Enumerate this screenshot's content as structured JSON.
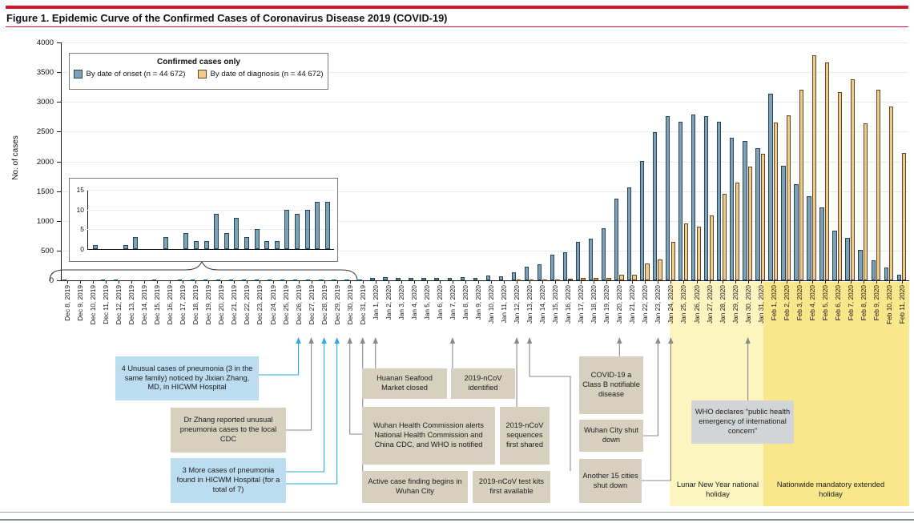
{
  "figure": {
    "label": "Figure 1.",
    "title": "Epidemic Curve of the Confirmed Cases of Coronavirus Disease 2019 (COVID-19)"
  },
  "y_axis": {
    "label": "No. of cases",
    "ticks": [
      0,
      500,
      1000,
      1500,
      2000,
      2500,
      3000,
      3500,
      4000
    ]
  },
  "legend": {
    "title": "Confirmed cases only",
    "items": [
      {
        "label": "By date of onset (n = 44 672)",
        "color": "#7EA1B5"
      },
      {
        "label": "By date of diagnosis (n = 44 672)",
        "color": "#F3C889"
      }
    ]
  },
  "chart_data": {
    "type": "bar",
    "title": "Epidemic Curve of the Confirmed Cases of Coronavirus Disease 2019 (COVID-19)",
    "xlabel": "Date",
    "ylabel": "No. of cases",
    "ylim": [
      0,
      4000
    ],
    "grid": true,
    "legend_position": "upper left",
    "dates": [
      "Dec 8, 2019",
      "Dec 9, 2019",
      "Dec 10, 2019",
      "Dec 11, 2019",
      "Dec 12, 2019",
      "Dec 13, 2019",
      "Dec 14, 2019",
      "Dec 15, 2019",
      "Dec 16, 2019",
      "Dec 17, 2019",
      "Dec 18, 2019",
      "Dec 19, 2019",
      "Dec 20, 2019",
      "Dec 21, 2019",
      "Dec 22, 2019",
      "Dec 23, 2019",
      "Dec 24, 2019",
      "Dec 25, 2019",
      "Dec 26, 2019",
      "Dec 27, 2019",
      "Dec 28, 2019",
      "Dec 29, 2019",
      "Dec 30, 2019",
      "Dec 31, 2019",
      "Jan 1, 2020",
      "Jan 2, 2020",
      "Jan 3, 2020",
      "Jan 4, 2020",
      "Jan 5, 2020",
      "Jan 6, 2020",
      "Jan 7, 2020",
      "Jan 8, 2020",
      "Jan 9, 2020",
      "Jan 10, 2020",
      "Jan 11, 2020",
      "Jan 12, 2020",
      "Jan 13, 2020",
      "Jan 14, 2020",
      "Jan 15, 2020",
      "Jan 16, 2020",
      "Jan 17, 2020",
      "Jan 18, 2020",
      "Jan 19, 2020",
      "Jan 20, 2020",
      "Jan 21, 2020",
      "Jan 22, 2020",
      "Jan 23, 2020",
      "Jan 24, 2020",
      "Jan 25, 2020",
      "Jan 26, 2020",
      "Jan 27, 2020",
      "Jan 28, 2020",
      "Jan 29, 2020",
      "Jan 30, 2020",
      "Jan 31, 2020",
      "Feb 1, 2020",
      "Feb 2, 2020",
      "Feb 3, 2020",
      "Feb 4, 2020",
      "Feb 5, 2020",
      "Feb 6, 2020",
      "Feb 7, 2020",
      "Feb 8, 2020",
      "Feb 9, 2020",
      "Feb 10, 2020",
      "Feb 11, 2020"
    ],
    "series": [
      {
        "name": "By date of onset",
        "color": "#7EA1B5",
        "values": [
          1,
          0,
          0,
          1,
          3,
          0,
          0,
          3,
          0,
          4,
          2,
          2,
          9,
          4,
          8,
          3,
          5,
          2,
          2,
          10,
          9,
          10,
          12,
          12,
          45,
          55,
          40,
          45,
          40,
          45,
          45,
          55,
          45,
          80,
          65,
          135,
          230,
          270,
          430,
          470,
          650,
          700,
          880,
          1380,
          1560,
          2010,
          2490,
          2760,
          2670,
          2790,
          2760,
          2660,
          2400,
          2350,
          2220,
          3140,
          1920,
          1620,
          1410,
          1220,
          840,
          720,
          510,
          330,
          210,
          100
        ]
      },
      {
        "name": "By date of diagnosis",
        "color": "#F3C889",
        "values": [
          0,
          0,
          0,
          0,
          0,
          0,
          0,
          0,
          0,
          0,
          0,
          0,
          0,
          0,
          0,
          0,
          0,
          0,
          0,
          0,
          0,
          0,
          0,
          0,
          0,
          0,
          0,
          0,
          0,
          0,
          0,
          0,
          0,
          0,
          0,
          5,
          10,
          5,
          10,
          25,
          35,
          40,
          35,
          90,
          95,
          280,
          350,
          640,
          950,
          900,
          1090,
          1460,
          1640,
          1910,
          2130,
          2650,
          2780,
          3210,
          3780,
          3660,
          3160,
          3380,
          2640,
          3200,
          2920,
          2140
        ]
      }
    ],
    "inset": {
      "description": "Expanded view of Dec 8 - Dec 31, 2019 (onset cases)",
      "ylim": [
        0,
        15
      ],
      "yticks": [
        0,
        5,
        10,
        15
      ],
      "values": [
        1,
        0,
        0,
        1,
        3,
        0,
        0,
        3,
        0,
        4,
        2,
        2,
        9,
        4,
        8,
        3,
        5,
        2,
        2,
        10,
        9,
        10,
        12,
        12
      ]
    }
  },
  "events": [
    {
      "date": "Dec 26, 2019",
      "color": "blue",
      "box": "unusual",
      "text": "4 Unusual cases of pneumonia (3 in the same family) noticed by Jixian Zhang, MD, in HICWM Hospital"
    },
    {
      "date": "Dec 27, 2019",
      "color": "gray",
      "box": "zhang",
      "text": "Dr Zhang reported unusual pneumonia cases to the local CDC"
    },
    {
      "date": "Dec 28, 2019",
      "color": "blue",
      "box": "more3",
      "text": "3 More cases of pneumonia found in HICWM Hospital (for a total of 7)"
    },
    {
      "date": "Dec 29, 2019",
      "color": "blue",
      "box": "more3"
    },
    {
      "date": "Dec 30, 2019",
      "color": "gray",
      "box": "whc",
      "text": "Wuhan Health Commission alerts National Health Commission and China CDC, and WHO is notified"
    },
    {
      "date": "Dec 31, 2019",
      "color": "gray",
      "box": "active",
      "text": "Active case finding begins in Wuhan City"
    },
    {
      "date": "Jan 1, 2020",
      "color": "gray",
      "box": "market",
      "text": "Huanan Seafood Market closed"
    },
    {
      "date": "Jan 7, 2020",
      "color": "gray",
      "box": "ncovid",
      "text": "2019-nCoV identified"
    },
    {
      "date": "Jan 12, 2020",
      "color": "gray",
      "box": "seq",
      "text": "2019-nCoV sequences first shared"
    },
    {
      "date": "Jan 13, 2020",
      "color": "gray",
      "box": "kits",
      "text": "2019-nCoV test kits first available"
    },
    {
      "date": "Jan 20, 2020",
      "color": "gray",
      "box": "classb",
      "text": "COVID-19 a Class B notifiable disease"
    },
    {
      "date": "Jan 23, 2020",
      "color": "gray",
      "box": "wuhanshut",
      "text": "Wuhan City shut down"
    },
    {
      "date": "Jan 24, 2020",
      "color": "gray",
      "box": "cities15",
      "text": "Another 15 cities shut down"
    },
    {
      "date": "Jan 30, 2020",
      "color": "gray",
      "box": "who",
      "text": "WHO declares “public health emergency of international concern”"
    }
  ],
  "holidays": [
    {
      "label": "Lunar New Year national holiday",
      "color": "#FCF5C0",
      "date_range": "Jan 25, 2020 - Jan 31, 2020"
    },
    {
      "label": "Nationwide mandatory extended holiday",
      "color": "#F9E78C",
      "date_range": "Feb 1, 2020 - Feb 11, 2020"
    }
  ]
}
